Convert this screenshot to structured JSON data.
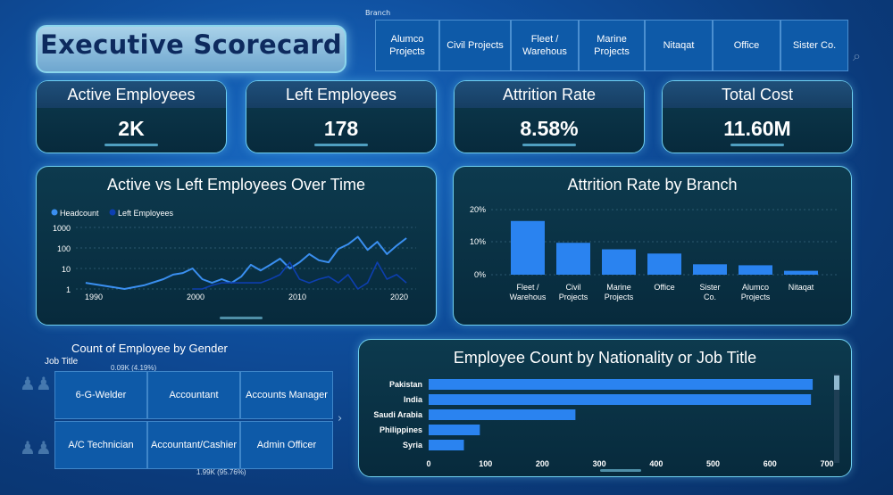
{
  "header": {
    "title": "Executive Scorecard",
    "branch_label": "Branch"
  },
  "branches": [
    "Alumco Projects",
    "Civil Projects",
    "Fleet / Warehous",
    "Marine Projects",
    "Nitaqat",
    "Office",
    "Sister Co."
  ],
  "kpis": [
    {
      "label": "Active Employees",
      "value": "2K"
    },
    {
      "label": "Left Employees",
      "value": "178"
    },
    {
      "label": "Attrition Rate",
      "value": "8.58%"
    },
    {
      "label": "Total Cost",
      "value": "11.60M"
    }
  ],
  "colors": {
    "headcount": "#3a8ff0",
    "left": "#0d3fb0",
    "bar": "#2a83f0"
  },
  "line_chart": {
    "title": "Active vs Left Employees Over Time",
    "legend": [
      "Headcount",
      "Left Employees"
    ],
    "y_ticks": [
      "1000",
      "100",
      "10",
      "1"
    ],
    "x_ticks": [
      "1990",
      "2000",
      "2010",
      "2020"
    ]
  },
  "attrition_chart": {
    "title": "Attrition Rate by Branch",
    "y_ticks": [
      "20%",
      "10%",
      "0%"
    ]
  },
  "nationality_chart": {
    "title": "Employee Count by Nationality or Job Title",
    "x_ticks": [
      "0",
      "100",
      "200",
      "300",
      "400",
      "500",
      "600",
      "700"
    ]
  },
  "gender": {
    "title": "Count of Employee by Gender",
    "job_title_label": "Job Title",
    "label_top": "0.09K (4.19%)",
    "label_bottom": "1.99K (95.76%)"
  },
  "job_titles": [
    "6-G-Welder",
    "Accountant",
    "Accounts Manager",
    "A/C Technician",
    "Accountant/Cashier",
    "Admin Officer"
  ],
  "chart_data": [
    {
      "type": "line",
      "title": "Active vs Left Employees Over Time",
      "yscale": "log",
      "ylim": [
        1,
        1000
      ],
      "x": [
        1988,
        1992,
        1994,
        1996,
        1997,
        1998,
        1999,
        2000,
        2001,
        2002,
        2003,
        2004,
        2005,
        2006,
        2007,
        2008,
        2009,
        2010,
        2011,
        2012,
        2013,
        2014,
        2015,
        2016,
        2017,
        2018,
        2019,
        2020,
        2021
      ],
      "series": [
        {
          "name": "Headcount",
          "values": [
            2,
            1,
            1.5,
            3,
            5,
            6,
            10,
            3,
            2,
            3,
            2,
            4,
            15,
            8,
            15,
            30,
            10,
            20,
            50,
            25,
            20,
            90,
            150,
            350,
            80,
            200,
            50,
            130,
            300
          ]
        },
        {
          "name": "Left Employees",
          "values": [
            null,
            null,
            null,
            null,
            null,
            null,
            1,
            1,
            1.5,
            2,
            2,
            2,
            2,
            2,
            3,
            5,
            20,
            3,
            2,
            3,
            4,
            2,
            5,
            1,
            2,
            20,
            3,
            5,
            2
          ]
        }
      ]
    },
    {
      "type": "bar",
      "title": "Attrition Rate by Branch",
      "ylim": [
        0,
        20
      ],
      "categories": [
        "Fleet / Warehous",
        "Civil Projects",
        "Marine Projects",
        "Office",
        "Sister Co.",
        "Alumco Projects",
        "Nitaqat"
      ],
      "values": [
        16.5,
        9.8,
        7.8,
        6.5,
        3.2,
        2.9,
        1.2
      ]
    },
    {
      "type": "bar",
      "orientation": "horizontal",
      "title": "Employee Count by Nationality or Job Title",
      "xlim": [
        0,
        700
      ],
      "categories": [
        "Pakistan",
        "India",
        "Saudi Arabia",
        "Philippines",
        "Syria"
      ],
      "values": [
        675,
        672,
        258,
        90,
        62
      ]
    }
  ]
}
